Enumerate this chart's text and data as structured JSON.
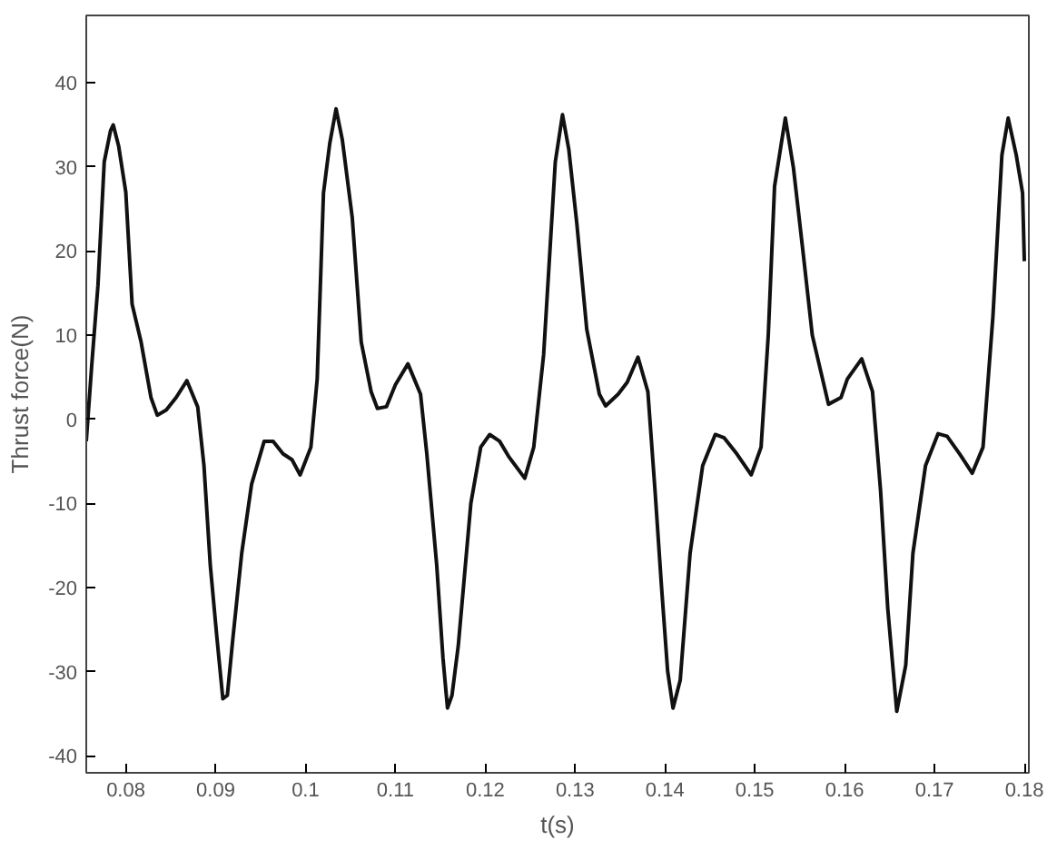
{
  "chart_data": {
    "type": "line",
    "xlabel": "t(s)",
    "ylabel": "Thrust force(N)",
    "xlim": [
      0.0756,
      0.1805
    ],
    "ylim": [
      -42,
      48
    ],
    "xticks": [
      0.08,
      0.09,
      0.1,
      0.11,
      0.12,
      0.13,
      0.14,
      0.15,
      0.16,
      0.17,
      0.18
    ],
    "yticks": [
      -40,
      -30,
      -20,
      -10,
      0,
      10,
      20,
      30,
      40
    ],
    "grid": false,
    "line_style": "solid",
    "marker": "none",
    "series": [
      {
        "color": "#111111",
        "x": [
          0.0756,
          0.0762,
          0.0769,
          0.0776,
          0.0783,
          0.0786,
          0.0792,
          0.08,
          0.0807,
          0.0817,
          0.0828,
          0.0835,
          0.0845,
          0.0856,
          0.0868,
          0.088,
          0.0887,
          0.0894,
          0.0901,
          0.0908,
          0.0913,
          0.0919,
          0.0929,
          0.094,
          0.0954,
          0.0964,
          0.0975,
          0.0985,
          0.0994,
          0.1006,
          0.1013,
          0.102,
          0.1027,
          0.1034,
          0.1041,
          0.1052,
          0.1062,
          0.1073,
          0.108,
          0.109,
          0.11,
          0.1114,
          0.1128,
          0.1135,
          0.1146,
          0.1153,
          0.1158,
          0.1163,
          0.117,
          0.1184,
          0.1195,
          0.1205,
          0.1216,
          0.1226,
          0.1244,
          0.1254,
          0.1265,
          0.1278,
          0.1286,
          0.1293,
          0.1302,
          0.1313,
          0.1327,
          0.1334,
          0.1348,
          0.1358,
          0.137,
          0.1381,
          0.1389,
          0.1396,
          0.1403,
          0.1409,
          0.1417,
          0.1428,
          0.1442,
          0.1456,
          0.1466,
          0.148,
          0.1496,
          0.1507,
          0.1515,
          0.1522,
          0.1534,
          0.1543,
          0.1554,
          0.1564,
          0.1582,
          0.1596,
          0.1603,
          0.1619,
          0.1631,
          0.164,
          0.1648,
          0.1658,
          0.1668,
          0.1676,
          0.169,
          0.1704,
          0.1714,
          0.1728,
          0.1742,
          0.1754,
          0.1765,
          0.1775,
          0.1782,
          0.1791,
          0.1798,
          0.18
        ],
        "values": [
          -2.6,
          6.3,
          15.9,
          30.6,
          34.3,
          35,
          32.5,
          27,
          13.7,
          9.2,
          2.6,
          0.5,
          1.1,
          2.6,
          4.6,
          1.5,
          -5.5,
          -17.3,
          -25.5,
          -33.2,
          -32.8,
          -26.2,
          -15.9,
          -7.7,
          -2.6,
          -2.6,
          -4.1,
          -4.8,
          -6.6,
          -3.3,
          4.8,
          26.9,
          32.8,
          36.9,
          33.2,
          24,
          9.2,
          3.3,
          1.3,
          1.5,
          4.1,
          6.6,
          3,
          -4.1,
          -17.3,
          -28.4,
          -34.3,
          -32.8,
          -26.9,
          -10,
          -3.3,
          -1.8,
          -2.6,
          -4.4,
          -7,
          -3.3,
          7.7,
          30.6,
          36.2,
          32.1,
          23.2,
          10.7,
          3,
          1.6,
          3,
          4.4,
          7.4,
          3.3,
          -8.5,
          -19.6,
          -29.9,
          -34.3,
          -31,
          -15.9,
          -5.5,
          -1.8,
          -2.2,
          -4.1,
          -6.6,
          -3.3,
          10,
          27.7,
          35.8,
          29.9,
          19.6,
          10,
          1.8,
          2.6,
          4.8,
          7.2,
          3.3,
          -8.5,
          -22.5,
          -34.7,
          -29.2,
          -15.9,
          -5.5,
          -1.7,
          -2,
          -4.1,
          -6.4,
          -3.3,
          12.2,
          31.4,
          35.8,
          31.4,
          26.9,
          18.8
        ]
      }
    ]
  }
}
